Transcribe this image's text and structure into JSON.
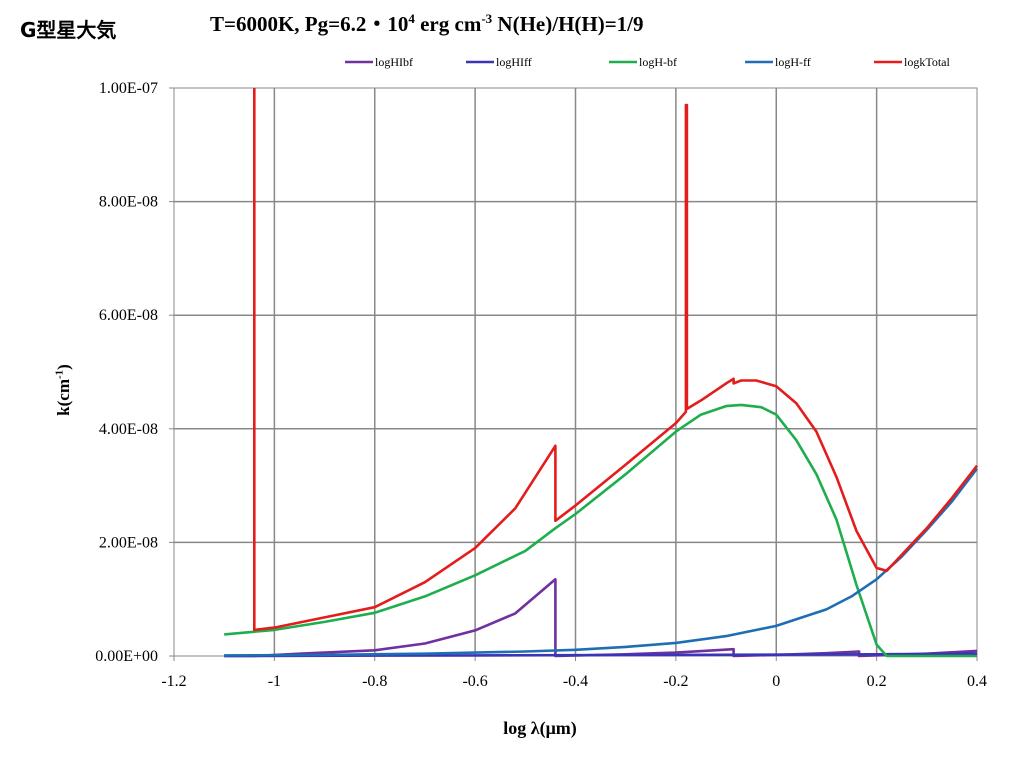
{
  "corner_label": "G型星大気",
  "chart_data": {
    "type": "line",
    "title_parts": {
      "a": "T=6000K, Pg=6.2・10",
      "a_sup": "4",
      "b": " erg cm",
      "b_sup": "-3",
      "c": " N(He)/H(H)=1/9"
    },
    "xlabel": "log λ(μm)",
    "ylabel_parts": {
      "main": "k(cm",
      "sup": "-1",
      "end": ")"
    },
    "xlim": [
      -1.2,
      0.4
    ],
    "ylim": [
      0,
      1e-07
    ],
    "x_ticks": [
      "-1.2",
      "-1",
      "-0.8",
      "-0.6",
      "-0.4",
      "-0.2",
      "0",
      "0.2",
      "0.4"
    ],
    "y_ticks": [
      "0.00E+00",
      "2.00E-08",
      "4.00E-08",
      "6.00E-08",
      "8.00E-08",
      "1.00E-07"
    ],
    "grid": true,
    "legend_position": "top",
    "series": [
      {
        "name": "logHIbf",
        "color": "#7030a0",
        "x": [
          -1.1,
          -1.04,
          -1.04,
          -0.95,
          -0.8,
          -0.7,
          -0.6,
          -0.52,
          -0.44,
          -0.44,
          -0.3,
          -0.2,
          -0.085,
          -0.085,
          0.0,
          0.1,
          0.165,
          0.165,
          0.3,
          0.4
        ],
        "y": [
          0,
          0,
          0,
          4e-10,
          1e-09,
          2.2e-09,
          4.5e-09,
          7.5e-09,
          1.35e-08,
          0,
          3e-10,
          6e-10,
          1.2e-09,
          0,
          2e-10,
          5e-10,
          8e-10,
          0,
          4e-10,
          9e-10
        ]
      },
      {
        "name": "logHIff",
        "color": "#3a35b8",
        "x": [
          -1.1,
          -0.6,
          -0.2,
          0.2,
          0.4
        ],
        "y": [
          0,
          1e-10,
          2e-10,
          3e-10,
          4e-10
        ]
      },
      {
        "name": "logH-bf",
        "color": "#1fae4e",
        "x": [
          -1.1,
          -1.0,
          -0.9,
          -0.8,
          -0.7,
          -0.6,
          -0.5,
          -0.44,
          -0.4,
          -0.3,
          -0.2,
          -0.15,
          -0.1,
          -0.07,
          -0.03,
          0.0,
          0.04,
          0.08,
          0.12,
          0.16,
          0.2,
          0.22,
          0.3,
          0.4
        ],
        "y": [
          3.8e-09,
          4.6e-09,
          6e-09,
          7.6e-09,
          1.05e-08,
          1.42e-08,
          1.85e-08,
          2.25e-08,
          2.5e-08,
          3.2e-08,
          3.95e-08,
          4.25e-08,
          4.4e-08,
          4.42e-08,
          4.38e-08,
          4.25e-08,
          3.8e-08,
          3.2e-08,
          2.4e-08,
          1.25e-08,
          2e-09,
          0,
          0,
          0
        ]
      },
      {
        "name": "logH-ff",
        "color": "#1f6eb5",
        "x": [
          -1.1,
          -0.9,
          -0.7,
          -0.5,
          -0.4,
          -0.3,
          -0.2,
          -0.1,
          0.0,
          0.1,
          0.15,
          0.2,
          0.25,
          0.3,
          0.35,
          0.4
        ],
        "y": [
          1e-10,
          2e-10,
          4e-10,
          8e-10,
          1.1e-09,
          1.6e-09,
          2.3e-09,
          3.5e-09,
          5.3e-09,
          8.2e-09,
          1.05e-08,
          1.35e-08,
          1.75e-08,
          2.22e-08,
          2.72e-08,
          3.3e-08
        ]
      },
      {
        "name": "logkTotal",
        "color": "#e31c1c",
        "x": [
          -1.04,
          -1.04,
          -1.0,
          -0.9,
          -0.8,
          -0.7,
          -0.6,
          -0.52,
          -0.44,
          -0.44,
          -0.4,
          -0.3,
          -0.2,
          -0.18,
          -0.18,
          -0.178,
          -0.178,
          -0.15,
          -0.1,
          -0.085,
          -0.085,
          -0.07,
          -0.04,
          0.0,
          0.04,
          0.08,
          0.12,
          0.16,
          0.2,
          0.22,
          0.3,
          0.35,
          0.4
        ],
        "y": [
          1e-07,
          4.6e-09,
          5e-09,
          6.8e-09,
          8.6e-09,
          1.3e-08,
          1.9e-08,
          2.6e-08,
          3.7e-08,
          2.38e-08,
          2.65e-08,
          3.37e-08,
          4.1e-08,
          4.3e-08,
          9.7e-08,
          9.7e-08,
          4.35e-08,
          4.5e-08,
          4.8e-08,
          4.88e-08,
          4.8e-08,
          4.85e-08,
          4.85e-08,
          4.75e-08,
          4.45e-08,
          3.95e-08,
          3.15e-08,
          2.2e-08,
          1.55e-08,
          1.5e-08,
          2.25e-08,
          2.78e-08,
          3.35e-08
        ]
      }
    ]
  }
}
